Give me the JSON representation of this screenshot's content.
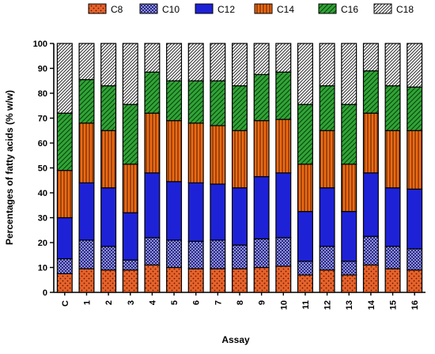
{
  "chart_data": {
    "type": "bar",
    "stacked": true,
    "xlabel": "Assay",
    "ylabel": "Percentages of fatty acids (% w/w)",
    "ylim": [
      0,
      100
    ],
    "yticks": [
      0,
      10,
      20,
      30,
      40,
      50,
      60,
      70,
      80,
      90,
      100
    ],
    "categories": [
      "C",
      "1",
      "2",
      "3",
      "4",
      "5",
      "6",
      "7",
      "8",
      "9",
      "10",
      "11",
      "12",
      "13",
      "14",
      "15",
      "16"
    ],
    "legend_position": "top",
    "series": [
      {
        "name": "C8",
        "color": "#e8622a",
        "pattern": "dots",
        "values": [
          7.5,
          9.5,
          9,
          9,
          11,
          10,
          9.5,
          9.5,
          9.5,
          10,
          10.5,
          7,
          9,
          7,
          11,
          9.5,
          9
        ]
      },
      {
        "name": "C10",
        "color": "#8e8fe6",
        "pattern": "checker",
        "values": [
          6,
          11.5,
          9.5,
          4,
          11,
          11,
          11,
          11.5,
          9.5,
          11.5,
          11.5,
          5.5,
          9.5,
          5.5,
          11.5,
          9,
          8.5
        ]
      },
      {
        "name": "C12",
        "color": "#1e22d6",
        "pattern": "solid",
        "values": [
          16.5,
          23,
          23.5,
          19,
          26,
          23.5,
          23.5,
          22.5,
          23,
          25,
          26,
          20,
          23.5,
          20,
          25.5,
          23.5,
          24
        ]
      },
      {
        "name": "C14",
        "color": "#ef6a12",
        "pattern": "vlines",
        "values": [
          19,
          24,
          23,
          19.5,
          24,
          24.5,
          24,
          23.5,
          23,
          22.5,
          21.5,
          19,
          23,
          19,
          24,
          23,
          23.5
        ]
      },
      {
        "name": "C16",
        "color": "#2fa535",
        "pattern": "diag",
        "values": [
          23,
          17.5,
          18,
          24,
          16.5,
          16,
          17,
          18,
          18,
          18.5,
          19,
          24,
          18,
          24,
          17,
          18,
          17.5
        ]
      },
      {
        "name": "C18",
        "color": "#ffffff",
        "pattern": "diagdense",
        "values": [
          28,
          14.5,
          17,
          24.5,
          11.5,
          15,
          15,
          15,
          17,
          12.5,
          11.5,
          24.5,
          17,
          24.5,
          11,
          17,
          17.5
        ]
      }
    ]
  }
}
